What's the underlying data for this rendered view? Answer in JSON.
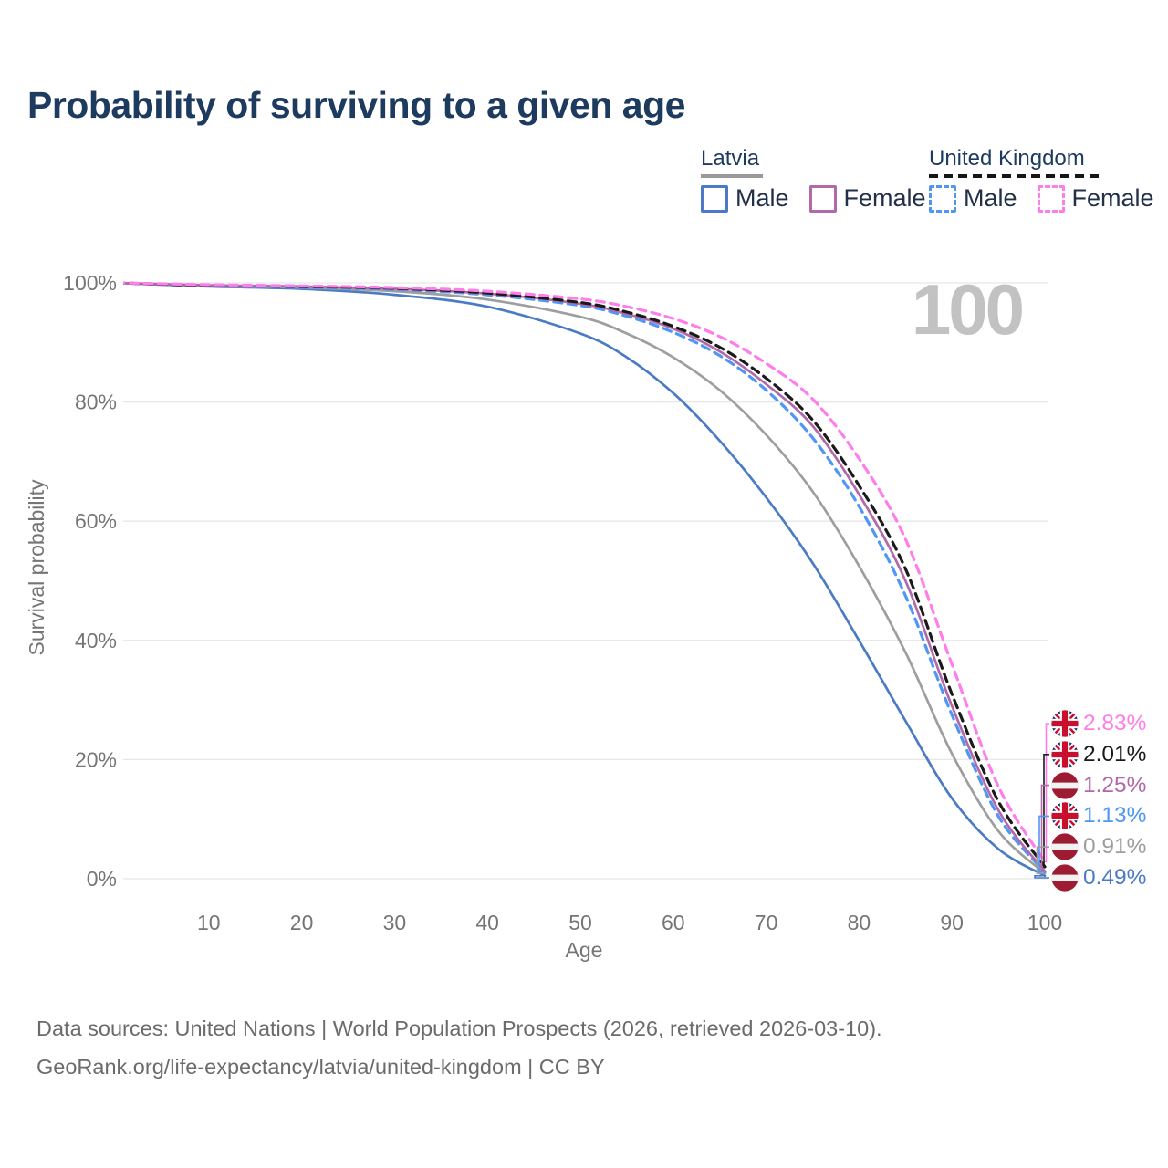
{
  "title": "Probability of surviving to a given age",
  "watermark_age": "100",
  "legend": {
    "groups": [
      {
        "label": "Latvia",
        "items": [
          {
            "label": "Male"
          },
          {
            "label": "Female"
          }
        ]
      },
      {
        "label": "United Kingdom",
        "items": [
          {
            "label": "Male"
          },
          {
            "label": "Female"
          }
        ]
      }
    ]
  },
  "colors": {
    "latvia_male": "#4a7bc4",
    "latvia_female": "#b169a8",
    "latvia_all": "#9e9e9e",
    "uk_male": "#4f96f6",
    "uk_female": "#ff7deb",
    "uk_all": "#1a1a1a",
    "latvia_underline": "#999999",
    "uk_underline": "#161616",
    "grid": "#e7e7e7",
    "title_text": "#1d3a5f",
    "axis_text": "#757575"
  },
  "chart_data": {
    "type": "line",
    "title": "Probability of surviving to a given age",
    "xlabel": "Age",
    "ylabel": "Survival probability",
    "x_ticks": [
      10,
      20,
      30,
      40,
      50,
      60,
      70,
      80,
      90,
      100
    ],
    "y_tick_labels": [
      "0%",
      "20%",
      "40%",
      "60%",
      "80%",
      "100%"
    ],
    "xlim": [
      0,
      100
    ],
    "ylim": [
      0,
      100
    ],
    "grid": "horizontal",
    "legend_position": "top-right",
    "age_marker": "100",
    "x": [
      0,
      10,
      20,
      30,
      40,
      50,
      55,
      60,
      65,
      70,
      75,
      80,
      85,
      90,
      95,
      100
    ],
    "series": [
      {
        "name": "United Kingdom Female",
        "flag": "uk",
        "color": "#ff7deb",
        "dash": true,
        "end_label": "2.83%",
        "values": [
          100,
          99.7,
          99.5,
          99.2,
          98.6,
          97.3,
          96.0,
          94.0,
          91.0,
          86.5,
          80.5,
          70.5,
          57.0,
          36.0,
          15.5,
          2.83
        ]
      },
      {
        "name": "United Kingdom Total",
        "flag": "uk",
        "color": "#1a1a1a",
        "dash": true,
        "end_label": "2.01%",
        "values": [
          100,
          99.6,
          99.4,
          99.1,
          98.3,
          96.7,
          95.1,
          92.7,
          89.2,
          84.0,
          77.0,
          66.0,
          52.0,
          31.0,
          13.0,
          2.01
        ]
      },
      {
        "name": "Latvia Female",
        "flag": "lv",
        "color": "#b169a8",
        "dash": false,
        "end_label": "1.25%",
        "values": [
          100,
          99.6,
          99.4,
          99.0,
          98.2,
          96.5,
          94.8,
          92.3,
          88.5,
          83.0,
          76.0,
          64.5,
          50.0,
          29.0,
          11.5,
          1.25
        ]
      },
      {
        "name": "United Kingdom Male",
        "flag": "uk",
        "color": "#4f96f6",
        "dash": true,
        "end_label": "1.13%",
        "values": [
          100,
          99.6,
          99.3,
          98.9,
          98.0,
          96.2,
          94.4,
          91.7,
          87.8,
          82.0,
          74.0,
          62.5,
          47.5,
          27.5,
          10.5,
          1.13
        ]
      },
      {
        "name": "Latvia Total",
        "flag": "lv",
        "color": "#9e9e9e",
        "dash": false,
        "end_label": "0.91%",
        "values": [
          100,
          99.5,
          99.2,
          98.6,
          97.2,
          94.3,
          91.5,
          87.5,
          82.0,
          74.5,
          65.0,
          52.5,
          38.0,
          21.0,
          8.0,
          0.91
        ]
      },
      {
        "name": "Latvia Male",
        "flag": "lv",
        "color": "#4a7bc4",
        "dash": false,
        "end_label": "0.49%",
        "values": [
          100,
          99.4,
          99.0,
          98.0,
          96.0,
          91.5,
          87.5,
          81.5,
          73.5,
          64.0,
          53.0,
          40.0,
          26.5,
          13.5,
          5.0,
          0.49
        ]
      }
    ]
  },
  "footer": {
    "line1": "Data sources: United Nations | World Population Prospects (2026, retrieved 2026-03-10).",
    "line2": "GeoRank.org/life-expectancy/latvia/united-kingdom | CC BY"
  }
}
